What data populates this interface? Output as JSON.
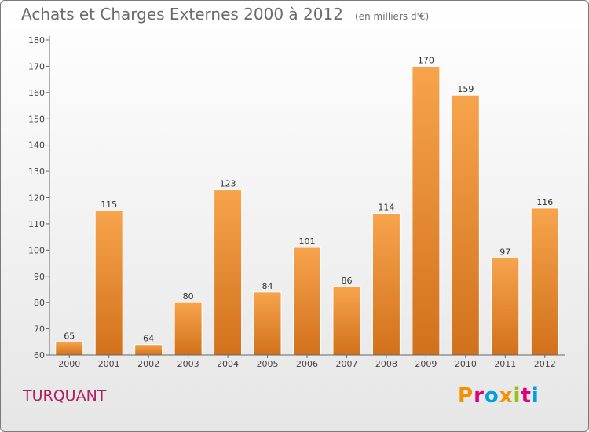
{
  "header": {
    "title": "Achats et Charges Externes 2000 à 2012",
    "unit": "(en milliers d'€)"
  },
  "footer": {
    "location": "TURQUANT",
    "logo": {
      "text": "Proxiti",
      "colors": [
        "#f39200",
        "#e2007a",
        "#009fe3",
        "#f39200",
        "#95c11f",
        "#e2007a",
        "#009fe3"
      ]
    }
  },
  "chart_data": {
    "type": "bar",
    "categories": [
      "2000",
      "2001",
      "2002",
      "2003",
      "2004",
      "2005",
      "2006",
      "2007",
      "2008",
      "2009",
      "2010",
      "2011",
      "2012"
    ],
    "values": [
      65,
      115,
      64,
      80,
      123,
      84,
      101,
      86,
      114,
      170,
      159,
      97,
      116
    ],
    "ylim": [
      60,
      180
    ],
    "yticks": [
      60,
      70,
      80,
      90,
      100,
      110,
      120,
      130,
      140,
      150,
      160,
      170,
      180
    ],
    "grid": false,
    "colors": {
      "bar_top": "#f7a44d",
      "bar_bottom": "#d2711b",
      "axis": "#666666"
    }
  }
}
